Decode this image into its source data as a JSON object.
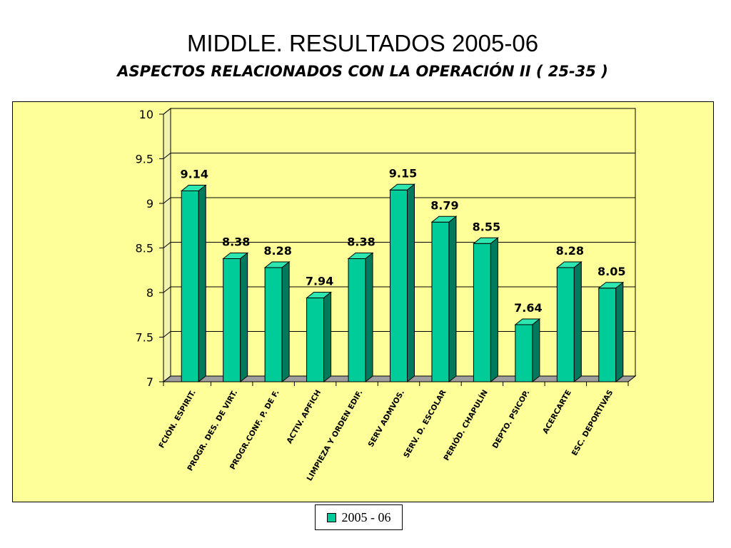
{
  "slide": {
    "title": "MIDDLE. RESULTADOS 2005-06",
    "subtitle": "ASPECTOS RELACIONADOS CON LA OPERACIÓN  II ( 25-35 )"
  },
  "chart_data": {
    "type": "bar",
    "style": "3d-column",
    "categories": [
      "FCIÓN. ESPIRIT.",
      "PROGR. DES. DE VIRT.",
      "PROGR.CONF. P. DE F.",
      "ACTIV. APFICH",
      "LIMPIEZA Y ORDEN EDIF.",
      "SERV ADMVOS.",
      "SERV. D. ESCOLAR",
      "PERIÓD. CHAPULÍN",
      "DEPTO. PSICOP.",
      "ACERCARTE",
      "ESC. DEPORTIVAS"
    ],
    "series": [
      {
        "name": "2005 - 06",
        "values": [
          9.14,
          8.38,
          8.28,
          7.94,
          8.38,
          9.15,
          8.79,
          8.55,
          7.64,
          8.28,
          8.05
        ],
        "labels": [
          "9.14",
          "8.38",
          "8.28",
          "7.94",
          "8.38",
          "9.15",
          "8.79",
          "8.55",
          "7.64",
          "8.28",
          "8.05"
        ]
      }
    ],
    "ylim": [
      7,
      10
    ],
    "yticks": [
      "7",
      "7.5",
      "8",
      "8.5",
      "9",
      "9.5",
      "10"
    ],
    "xlabel": "",
    "ylabel": "",
    "grid": true,
    "legend_position": "bottom",
    "colors": {
      "bar_front": "#00cc99",
      "bar_top": "#2ee6b0",
      "bar_side": "#007a5c",
      "plot_bg": "#ffff99",
      "floor": "#9e9e9e",
      "wall": "#f2f2b0"
    }
  }
}
